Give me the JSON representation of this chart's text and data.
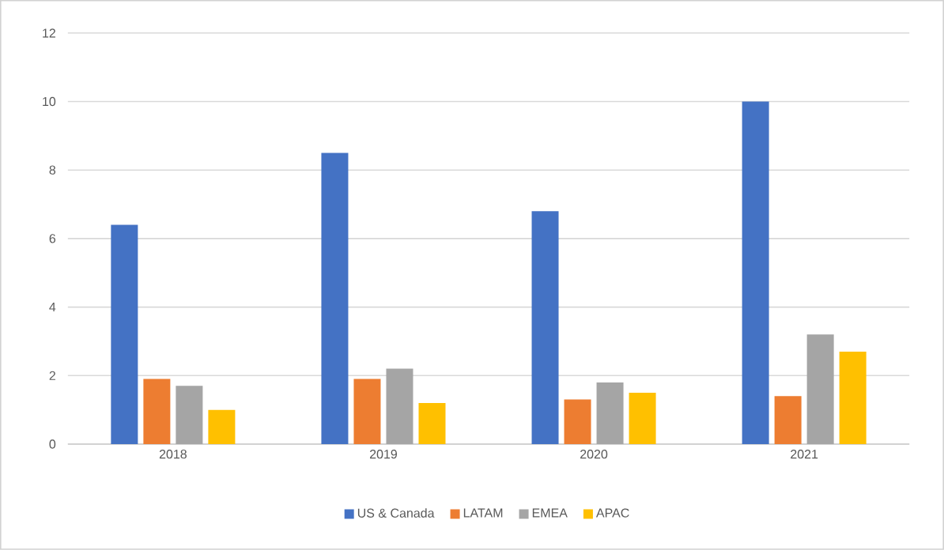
{
  "chart_data": {
    "type": "bar",
    "categories": [
      "2018",
      "2019",
      "2020",
      "2021"
    ],
    "series": [
      {
        "name": "US & Canada",
        "color": "#4472c4",
        "values": [
          6.4,
          8.5,
          6.8,
          10.0
        ]
      },
      {
        "name": "LATAM",
        "color": "#ed7d31",
        "values": [
          1.9,
          1.9,
          1.3,
          1.4
        ]
      },
      {
        "name": "EMEA",
        "color": "#a5a5a5",
        "values": [
          1.7,
          2.2,
          1.8,
          3.2
        ]
      },
      {
        "name": "APAC",
        "color": "#ffc000",
        "values": [
          1.0,
          1.2,
          1.5,
          2.7
        ]
      }
    ],
    "ylim": [
      0,
      12
    ],
    "yticks": [
      0,
      2,
      4,
      6,
      8,
      10,
      12
    ],
    "grid": "y",
    "legend": "bottom"
  }
}
